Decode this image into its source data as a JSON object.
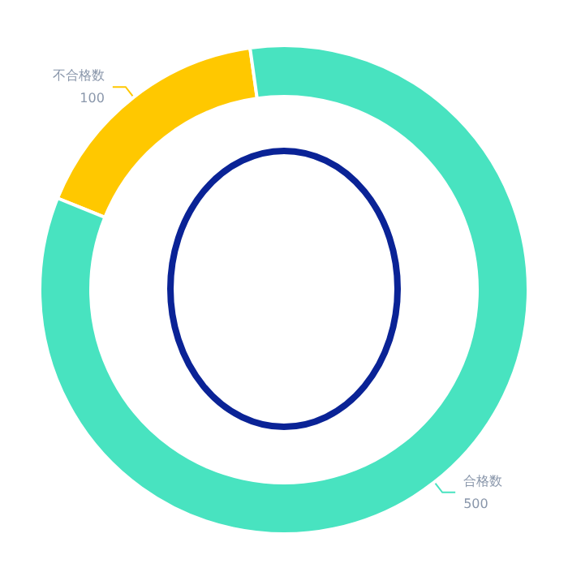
{
  "chart_data": {
    "type": "donut",
    "categories": [
      "不合格数",
      "合格数"
    ],
    "values": [
      100,
      500
    ],
    "colors": [
      "#ffc800",
      "#48e3c0"
    ],
    "data_labels": true,
    "legend": false
  }
}
